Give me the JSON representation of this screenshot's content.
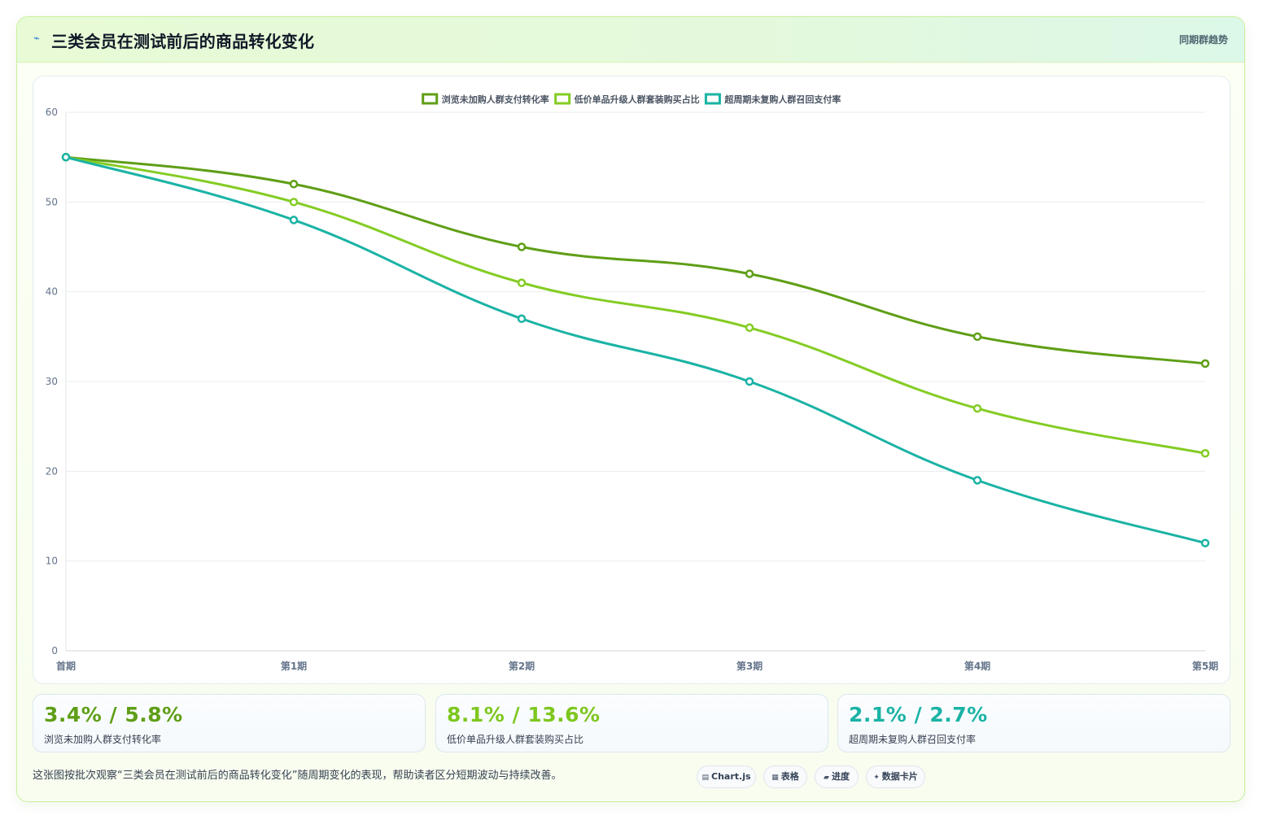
{
  "header": {
    "title": "三类会员在测试前后的商品转化变化",
    "tag": "同期群趋势"
  },
  "chart_data": {
    "type": "line",
    "categories": [
      "首期",
      "第1期",
      "第2期",
      "第3期",
      "第4期",
      "第5期"
    ],
    "ylim": [
      0,
      60
    ],
    "yticks": [
      0,
      10,
      20,
      30,
      40,
      50,
      60
    ],
    "grid": true,
    "legend_position": "top-center",
    "series": [
      {
        "name": "浏览未加购人群支付转化率",
        "color": "#5f9e16",
        "values": [
          55,
          52,
          45,
          42,
          35,
          32
        ]
      },
      {
        "name": "低价单品升级人群套装购买占比",
        "color": "#84cc24",
        "values": [
          55,
          50,
          41,
          36,
          27,
          22
        ]
      },
      {
        "name": "超周期未复购人群召回支付率",
        "color": "#1ab3a5",
        "values": [
          55,
          48,
          37,
          30,
          19,
          12
        ]
      }
    ]
  },
  "stats": [
    {
      "value": "3.4% / 5.8%",
      "label": "浏览未加购人群支付转化率",
      "color": "#5f9e16"
    },
    {
      "value": "8.1% / 13.6%",
      "label": "低价单品升级人群套装购买占比",
      "color": "#7ec71f"
    },
    {
      "value": "2.1% / 2.7%",
      "label": "超周期未复购人群召回支付率",
      "color": "#1ab3a5"
    }
  ],
  "footnote": "这张图按批次观察“三类会员在测试前后的商品转化变化”随周期变化的表现，帮助读者区分短期波动与持续改善。",
  "pills": [
    {
      "icon": "▤",
      "label": "Chart.js",
      "icon_name": "chart-icon"
    },
    {
      "icon": "▦",
      "label": "表格",
      "icon_name": "table-icon"
    },
    {
      "icon": "▰",
      "label": "进度",
      "icon_name": "progress-icon"
    },
    {
      "icon": "✦",
      "label": "数据卡片",
      "icon_name": "card-icon"
    }
  ]
}
